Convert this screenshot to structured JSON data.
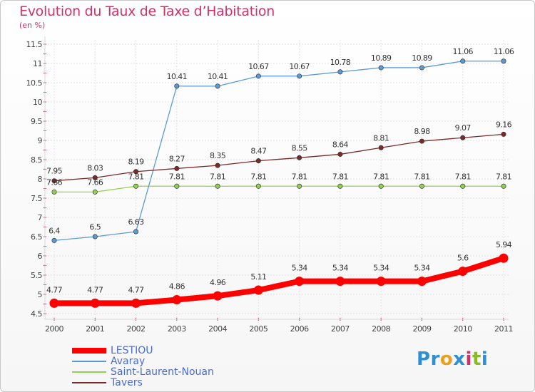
{
  "header": {
    "title": "Evolution du Taux de Taxe d’Habitation",
    "unit": "(en %)"
  },
  "logo": {
    "text": "Proxiti",
    "colors": [
      "#2f8fd0",
      "#2f8fd0",
      "#e8a020",
      "#2f8fd0",
      "#d0316b",
      "#8ab82a",
      "#2f8fd0"
    ]
  },
  "chart_data": {
    "type": "line",
    "x": [
      "2000",
      "2001",
      "2002",
      "2003",
      "2004",
      "2005",
      "2006",
      "2007",
      "2008",
      "2009",
      "2010",
      "2011"
    ],
    "ylim": [
      4.5,
      11.5
    ],
    "yticks": [
      "4.5",
      "5",
      "5.5",
      "6",
      "6.5",
      "7",
      "7.5",
      "8",
      "8.5",
      "9",
      "9.5",
      "10",
      "10.5",
      "11",
      "11.5"
    ],
    "grid": true,
    "legend": "bottom-left",
    "series": [
      {
        "name": "LESTIOU",
        "color": "#ff0000",
        "values": [
          4.77,
          4.77,
          4.77,
          4.86,
          4.96,
          5.11,
          5.34,
          5.34,
          5.34,
          5.34,
          5.6,
          5.94
        ],
        "labels": [
          "4.77",
          "4.77",
          "4.77",
          "4.86",
          "4.96",
          "5.11",
          "5.34",
          "5.34",
          "5.34",
          "5.34",
          "5.6",
          "5.94"
        ]
      },
      {
        "name": "Avaray",
        "color": "#5b9bd5",
        "values": [
          6.4,
          6.5,
          6.63,
          10.41,
          10.41,
          10.67,
          10.67,
          10.78,
          10.89,
          10.89,
          11.06,
          11.06
        ],
        "labels": [
          "6.4",
          "6.5",
          "6.63",
          "10.41",
          "10.41",
          "10.67",
          "10.67",
          "10.78",
          "10.89",
          "10.89",
          "11.06",
          "11.06"
        ]
      },
      {
        "name": "Saint-Laurent-Nouan",
        "color": "#92d050",
        "values": [
          7.66,
          7.66,
          7.81,
          7.81,
          7.81,
          7.81,
          7.81,
          7.81,
          7.81,
          7.81,
          7.81,
          7.81
        ],
        "labels": [
          "7.66",
          "7.66",
          "7.81",
          "7.81",
          "7.81",
          "7.81",
          "7.81",
          "7.81",
          "7.81",
          "7.81",
          "7.81",
          "7.81"
        ]
      },
      {
        "name": "Tavers",
        "color": "#7b2a2a",
        "values": [
          7.95,
          8.03,
          8.19,
          8.27,
          8.35,
          8.47,
          8.55,
          8.64,
          8.81,
          8.98,
          9.07,
          9.16
        ],
        "labels": [
          "7.95",
          "8.03",
          "8.19",
          "8.27",
          "8.35",
          "8.47",
          "8.55",
          "8.64",
          "8.81",
          "8.98",
          "9.07",
          "9.16"
        ]
      }
    ]
  }
}
